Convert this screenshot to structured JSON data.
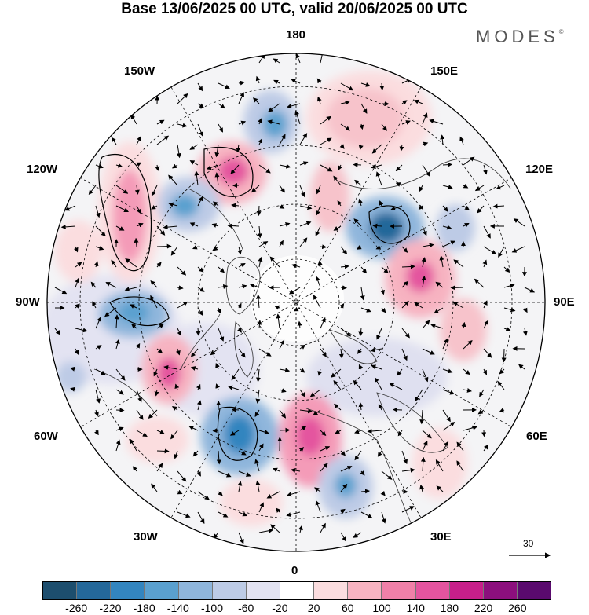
{
  "title": "Base 13/06/2025 00 UTC, valid 20/06/2025 00 UTC",
  "brand": "MODES",
  "brand_mark": "©",
  "longitude_labels": {
    "top": "180",
    "bottom": "0",
    "left": "90W",
    "right": "90E",
    "upper_left_1": "150W",
    "upper_left_2": "120W",
    "lower_left_1": "60W",
    "lower_left_2": "30W",
    "upper_right_1": "150E",
    "upper_right_2": "120E",
    "lower_right_1": "60E",
    "lower_right_2": "30E"
  },
  "reference_vector": "30",
  "colorbar": {
    "colors": [
      "#1d4e6e",
      "#24689a",
      "#3385bf",
      "#5aa0cf",
      "#8fb6dc",
      "#bdcbe6",
      "#e3e3f2",
      "#ffffff",
      "#fbdddf",
      "#f7b3c1",
      "#f080a8",
      "#e4549f",
      "#c71f8a",
      "#8c0f7d",
      "#5a0a6e"
    ],
    "ticks": [
      "-260",
      "-220",
      "-180",
      "-140",
      "-100",
      "-60",
      "-20",
      "20",
      "60",
      "100",
      "140",
      "180",
      "220",
      "260"
    ]
  }
}
